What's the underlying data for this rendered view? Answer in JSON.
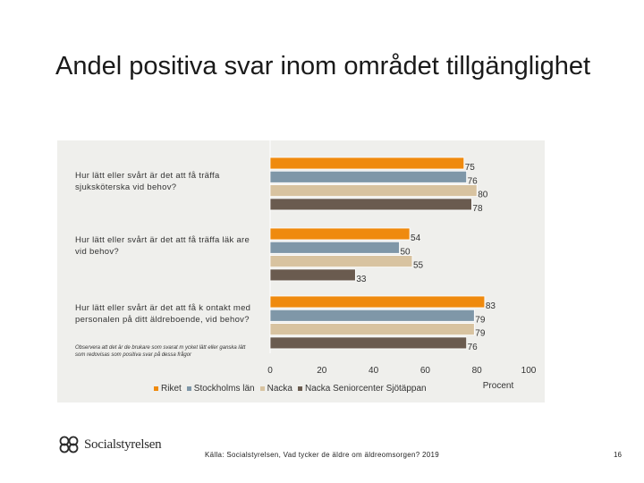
{
  "title": "Andel positiva svar inom området tillgänglighet",
  "chart_data": {
    "type": "bar",
    "orientation": "horizontal",
    "categories": [
      "Hur lätt eller svårt är det att få träffa sjuksköterska vid behov?",
      "Hur lätt eller svårt är det att få träffa läk are vid behov?",
      "Hur lätt eller svårt är det att få k ontakt med personalen på ditt äldreboende, vid behov?"
    ],
    "series": [
      {
        "name": "Riket",
        "color": "#ef8a0e",
        "values": [
          75,
          54,
          83
        ]
      },
      {
        "name": "Stockholms län",
        "color": "#7f97a8",
        "values": [
          76,
          50,
          79
        ]
      },
      {
        "name": "Nacka",
        "color": "#d8c3a0",
        "values": [
          80,
          55,
          79
        ]
      },
      {
        "name": "Nacka Seniorcenter Sjötäppan",
        "color": "#6a5b4f",
        "values": [
          78,
          33,
          76
        ]
      }
    ],
    "xlim": [
      0,
      100
    ],
    "xticks": [
      "0",
      "20",
      "40",
      "60",
      "80",
      "100"
    ],
    "xlabel": "Procent",
    "legend_position": "bottom",
    "grid": false
  },
  "note": "Observera att det är de brukare som svarat m ycket lätt eller ganska lätt som redovisas som  positiva svar på dessa frågor",
  "footer": {
    "logo_text": "Socialstyrelsen",
    "source": "Källa: Socialstyrelsen, Vad tycker de äldre om äldreomsorgen? 2019",
    "page_number": "16"
  }
}
